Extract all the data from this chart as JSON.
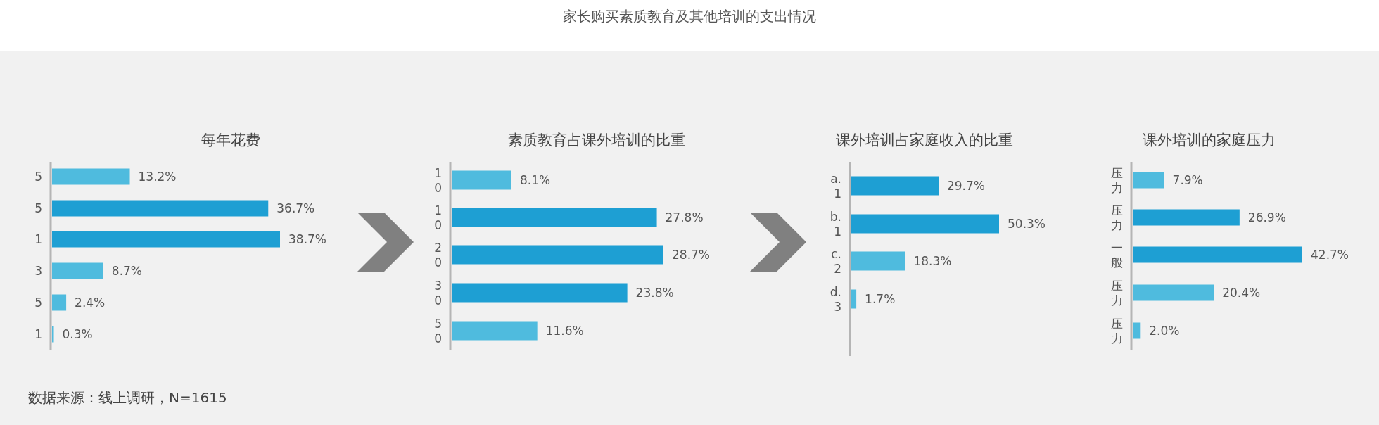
{
  "chart_data": [
    {
      "type": "other",
      "title": "家长购买素质教育及其他培训的支出情况",
      "annotations": [
        "数据来源：线上调研，N=1615"
      ]
    },
    {
      "type": "bar",
      "orientation": "horizontal",
      "title": "每年花费",
      "categories": [
        "5",
        "5",
        "1",
        "3",
        "5",
        "1"
      ],
      "values": [
        13.2,
        36.7,
        38.7,
        8.7,
        2.4,
        0.3
      ],
      "value_labels": [
        "13.2%",
        "36.7%",
        "38.7%",
        "8.7%",
        "2.4%",
        "0.3%"
      ],
      "colors": [
        "#4fbbde",
        "#1e9fd3",
        "#1e9fd3",
        "#4fbbde",
        "#4fbbde",
        "#4fbbde"
      ]
    },
    {
      "type": "bar",
      "orientation": "horizontal",
      "title": "素质教育占课外培训的比重",
      "categories": [
        "10",
        "10",
        "20",
        "30",
        "50"
      ],
      "values": [
        8.1,
        27.8,
        28.7,
        23.8,
        11.6
      ],
      "value_labels": [
        "8.1%",
        "27.8%",
        "28.7%",
        "23.8%",
        "11.6%"
      ],
      "colors": [
        "#4fbbde",
        "#1e9fd3",
        "#1e9fd3",
        "#1e9fd3",
        "#4fbbde"
      ]
    },
    {
      "type": "bar",
      "orientation": "horizontal",
      "title": "课外培训占家庭收入的比重",
      "categories": [
        "a.1",
        "b.1",
        "c.2",
        "d.3"
      ],
      "values": [
        29.7,
        50.3,
        18.3,
        1.7
      ],
      "value_labels": [
        "29.7%",
        "50.3%",
        "18.3%",
        "1.7%"
      ],
      "colors": [
        "#1e9fd3",
        "#1e9fd3",
        "#4fbbde",
        "#4fbbde"
      ]
    },
    {
      "type": "bar",
      "orientation": "horizontal",
      "title": "课外培训的家庭压力",
      "categories": [
        "压力",
        "压力",
        "一般",
        "压力",
        "压力"
      ],
      "values": [
        7.9,
        26.9,
        42.7,
        20.4,
        2.0
      ],
      "value_labels": [
        "7.9%",
        "26.9%",
        "42.7%",
        "20.4%",
        "2.0%"
      ],
      "colors": [
        "#4fbbde",
        "#1e9fd3",
        "#1e9fd3",
        "#4fbbde",
        "#4fbbde"
      ]
    }
  ]
}
